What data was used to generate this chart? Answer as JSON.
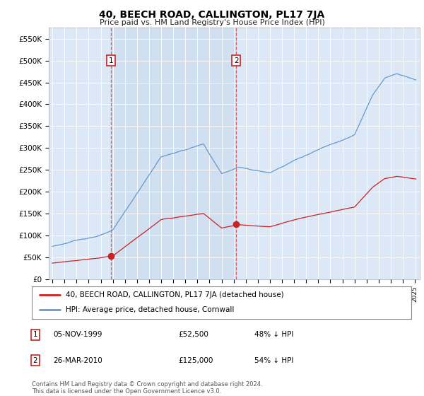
{
  "title": "40, BEECH ROAD, CALLINGTON, PL17 7JA",
  "subtitle": "Price paid vs. HM Land Registry's House Price Index (HPI)",
  "ylabel_ticks": [
    "£0",
    "£50K",
    "£100K",
    "£150K",
    "£200K",
    "£250K",
    "£300K",
    "£350K",
    "£400K",
    "£450K",
    "£500K",
    "£550K"
  ],
  "ytick_values": [
    0,
    50000,
    100000,
    150000,
    200000,
    250000,
    300000,
    350000,
    400000,
    450000,
    500000,
    550000
  ],
  "ylim": [
    0,
    575000
  ],
  "plot_bg_color": "#dce8f5",
  "fig_bg_color": "#ffffff",
  "line_color_hpi": "#6699cc",
  "line_color_price": "#cc2222",
  "shade_color": "#ccddf0",
  "legend_label_price": "40, BEECH ROAD, CALLINGTON, PL17 7JA (detached house)",
  "legend_label_hpi": "HPI: Average price, detached house, Cornwall",
  "transaction1_date": "05-NOV-1999",
  "transaction1_price": "£52,500",
  "transaction1_hpi": "48% ↓ HPI",
  "transaction2_date": "26-MAR-2010",
  "transaction2_price": "£125,000",
  "transaction2_hpi": "54% ↓ HPI",
  "footnote": "Contains HM Land Registry data © Crown copyright and database right 2024.\nThis data is licensed under the Open Government Licence v3.0.",
  "vline1_year": 1999.83,
  "vline2_year": 2010.21,
  "xlim_left": 1994.7,
  "xlim_right": 2025.4
}
